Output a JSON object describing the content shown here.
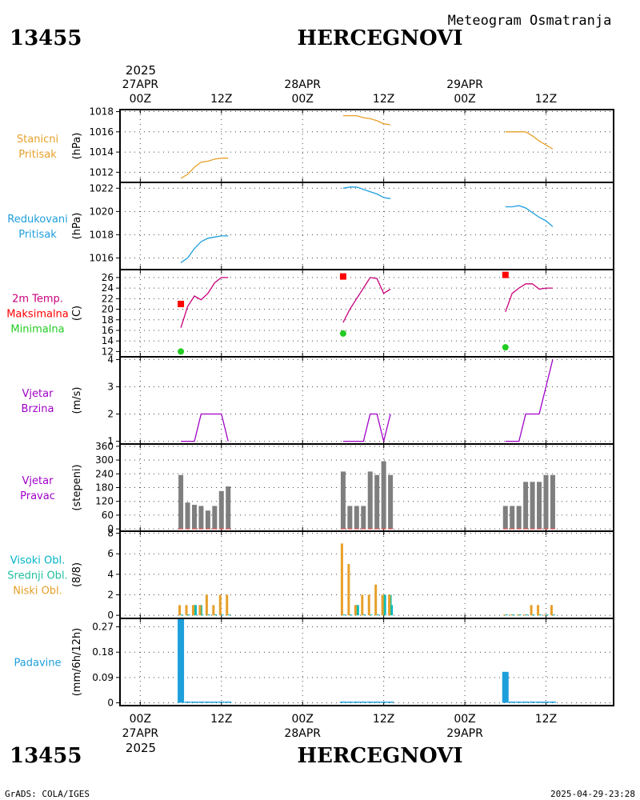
{
  "header": {
    "station_id": "13455",
    "station_name": "HERCEGNOVI",
    "subtitle": "Meteogram Osmatranja"
  },
  "footer": {
    "station_id": "13455",
    "station_name": "HERCEGNOVI",
    "software": "GrADS: COLA/IGES",
    "timestamp": "2025-04-29-23:28"
  },
  "time_axis": {
    "year": "2025",
    "ticks": [
      {
        "t": 0,
        "top": [
          "27APR",
          "00Z"
        ],
        "bottom": [
          "00Z",
          "27APR"
        ]
      },
      {
        "t": 12,
        "top": [
          "12Z"
        ],
        "bottom": [
          "12Z"
        ]
      },
      {
        "t": 24,
        "top": [
          "28APR",
          "00Z"
        ],
        "bottom": [
          "00Z",
          "28APR"
        ]
      },
      {
        "t": 36,
        "top": [
          "12Z"
        ],
        "bottom": [
          "12Z"
        ]
      },
      {
        "t": 48,
        "top": [
          "29APR",
          "00Z"
        ],
        "bottom": [
          "00Z",
          "29APR"
        ]
      },
      {
        "t": 60,
        "top": [
          "12Z"
        ],
        "bottom": [
          "12Z"
        ]
      }
    ],
    "range_hours": [
      -3,
      70
    ]
  },
  "colors": {
    "station_pressure": "#e6a02a",
    "reduced_pressure": "#1e9fdc",
    "temperature": "#c8007a",
    "tmax": "#ff0000",
    "tmin": "#22cc22",
    "wind": "#a000c8",
    "wind_dir_bar": "#7f7f7f",
    "wind_dir_base": "#ff4444",
    "high_cloud": "#00b4c8",
    "mid_cloud": "#20c0a0",
    "low_cloud": "#e6a02a",
    "precip": "#1e9fdc"
  },
  "chart_data": [
    {
      "type": "line",
      "panel": "station_pressure",
      "labels": [
        "Stanicni",
        "Pritisak"
      ],
      "ylabel": "(hPa)",
      "ylim": [
        1011,
        1018.2
      ],
      "yticks": [
        1012,
        1014,
        1016,
        1018
      ],
      "series": [
        {
          "x": [
            6,
            7,
            8,
            9,
            10,
            11,
            12,
            13,
            30,
            31,
            32,
            33,
            34,
            35,
            36,
            37,
            54,
            55,
            56,
            57,
            58,
            59,
            60,
            61
          ],
          "y": [
            1011.4,
            1011.8,
            1012.5,
            1013.0,
            1013.1,
            1013.3,
            1013.4,
            1013.4,
            null,
            null,
            null,
            null,
            null,
            null,
            null,
            null,
            null,
            null,
            null,
            null,
            null,
            null,
            null,
            null
          ]
        },
        {
          "x": [
            30,
            31,
            32,
            33,
            34,
            35,
            36,
            37
          ],
          "y": [
            1017.6,
            1017.6,
            1017.6,
            1017.4,
            1017.3,
            1017.1,
            1016.8,
            1016.7
          ]
        },
        {
          "x": [
            54,
            55,
            56,
            57,
            58,
            59,
            60,
            61
          ],
          "y": [
            1016.0,
            1016.0,
            1016.0,
            1016.0,
            1015.6,
            1015.1,
            1014.7,
            1014.3
          ]
        }
      ]
    },
    {
      "type": "line",
      "panel": "reduced_pressure",
      "labels": [
        "Redukovani",
        "Pritisak"
      ],
      "ylabel": "(hPa)",
      "ylim": [
        1015,
        1022.5
      ],
      "yticks": [
        1016,
        1018,
        1020,
        1022
      ],
      "series": [
        {
          "x": [
            6,
            7,
            8,
            9,
            10,
            11,
            12,
            13
          ],
          "y": [
            1015.6,
            1016.0,
            1016.8,
            1017.4,
            1017.7,
            1017.8,
            1017.9,
            1017.9
          ]
        },
        {
          "x": [
            30,
            31,
            32,
            33,
            34,
            35,
            36,
            37
          ],
          "y": [
            1022.0,
            1022.1,
            1022.1,
            1021.9,
            1021.7,
            1021.5,
            1021.2,
            1021.1
          ]
        },
        {
          "x": [
            54,
            55,
            56,
            57,
            58,
            59,
            60,
            61
          ],
          "y": [
            1020.4,
            1020.4,
            1020.5,
            1020.3,
            1019.9,
            1019.5,
            1019.2,
            1018.7
          ]
        }
      ]
    },
    {
      "type": "line",
      "panel": "temperature",
      "labels": [
        "2m Temp.",
        "Maksimalna",
        "Minimalna"
      ],
      "ylabel": "(C)",
      "ylim": [
        11,
        27.5
      ],
      "yticks": [
        12,
        14,
        16,
        18,
        20,
        22,
        24,
        26
      ],
      "series": [
        {
          "x": [
            6,
            7,
            8,
            9,
            10,
            11,
            12,
            13
          ],
          "y": [
            16.5,
            20.5,
            22.5,
            21.8,
            23.0,
            25.0,
            26.0,
            26.0
          ]
        },
        {
          "x": [
            30,
            31,
            32,
            33,
            34,
            35,
            36,
            37
          ],
          "y": [
            17.5,
            20.0,
            22.0,
            24.0,
            26.0,
            25.8,
            23.0,
            23.8
          ]
        },
        {
          "x": [
            54,
            55,
            56,
            57,
            58,
            59,
            60,
            61
          ],
          "y": [
            19.5,
            23.0,
            24.0,
            24.8,
            24.8,
            23.8,
            24.0,
            24.0
          ]
        }
      ],
      "tmax": {
        "x": [
          6,
          30,
          54
        ],
        "y": [
          21,
          26.2,
          26.5
        ]
      },
      "tmin": {
        "x": [
          6,
          30,
          54
        ],
        "y": [
          12,
          15.4,
          12.8
        ]
      }
    },
    {
      "type": "line",
      "panel": "wind_speed",
      "labels": [
        "Vjetar",
        "Brzina"
      ],
      "ylabel": "(m/s)",
      "ylim": [
        0.9,
        4.1
      ],
      "yticks": [
        1,
        2,
        3,
        4
      ],
      "series": [
        {
          "x": [
            6,
            7,
            8,
            9,
            10,
            11,
            12,
            13
          ],
          "y": [
            1,
            1,
            1,
            2,
            2,
            2,
            2,
            1
          ]
        },
        {
          "x": [
            30,
            31,
            32,
            33,
            34,
            35,
            36,
            37
          ],
          "y": [
            1,
            1,
            1,
            1,
            2,
            2,
            1,
            2
          ]
        },
        {
          "x": [
            54,
            55,
            56,
            57,
            58,
            59,
            60,
            61
          ],
          "y": [
            1,
            1,
            1,
            2,
            2,
            2,
            3,
            4
          ]
        }
      ]
    },
    {
      "type": "bar",
      "panel": "wind_direction",
      "labels": [
        "Vjetar",
        "Pravac"
      ],
      "ylabel": "(stepeni)",
      "ylim": [
        -10,
        370
      ],
      "yticks": [
        0,
        60,
        120,
        180,
        240,
        300,
        360
      ],
      "x": [
        6,
        7,
        8,
        9,
        10,
        11,
        12,
        13,
        30,
        31,
        32,
        33,
        34,
        35,
        36,
        37,
        54,
        55,
        56,
        57,
        58,
        59,
        60,
        61
      ],
      "values": [
        235,
        115,
        105,
        100,
        80,
        100,
        165,
        185,
        250,
        100,
        100,
        100,
        250,
        235,
        295,
        235,
        100,
        100,
        100,
        205,
        205,
        205,
        235,
        235
      ]
    },
    {
      "type": "bar",
      "panel": "clouds",
      "labels": [
        "Visoki Obl.",
        "Srednji Obl.",
        "Niski Obl."
      ],
      "ylabel": "(8/8)",
      "ylim": [
        -0.3,
        8.2
      ],
      "yticks": [
        0,
        2,
        4,
        6,
        8
      ],
      "x": [
        6,
        7,
        8,
        9,
        10,
        11,
        12,
        13,
        30,
        31,
        32,
        33,
        34,
        35,
        36,
        37,
        54,
        55,
        56,
        57,
        58,
        59,
        60,
        61
      ],
      "series": [
        {
          "name": "Visoki Obl.",
          "values": [
            0,
            0,
            1,
            0,
            0,
            0,
            0,
            0,
            0,
            0,
            1,
            0,
            0,
            0,
            2,
            1,
            0,
            0,
            0,
            0,
            0,
            0,
            0,
            0
          ]
        },
        {
          "name": "Srednji Obl.",
          "values": [
            0,
            0,
            1,
            1,
            0,
            0,
            0,
            0,
            0,
            0,
            1,
            0,
            0,
            0,
            2,
            2,
            0,
            0,
            0,
            0,
            0,
            0,
            0,
            0
          ]
        },
        {
          "name": "Niski Obl.",
          "values": [
            1,
            1,
            1,
            1,
            2,
            1,
            2,
            2,
            7,
            5,
            1,
            2,
            2,
            3,
            2,
            2,
            0,
            0,
            0,
            0,
            1,
            1,
            0,
            1
          ]
        }
      ]
    },
    {
      "type": "bar",
      "panel": "precipitation",
      "labels": [
        "Padavine"
      ],
      "ylabel": "(mm/6h/12h)",
      "ylim": [
        -0.01,
        0.3
      ],
      "yticks": [
        0,
        0.09,
        0.18,
        0.27
      ],
      "ytick_labels": [
        "0",
        "0.09",
        "0.18",
        "0.27"
      ],
      "x": [
        6,
        7,
        8,
        9,
        10,
        11,
        12,
        13,
        30,
        31,
        32,
        33,
        34,
        35,
        36,
        37,
        54,
        55,
        56,
        57,
        58,
        59,
        60,
        61
      ],
      "values": [
        0.3,
        0.002,
        0.002,
        0.002,
        0.002,
        0.002,
        0.002,
        0.002,
        0.002,
        0.002,
        0.002,
        0.002,
        0.002,
        0.002,
        0.002,
        0.002,
        0.11,
        0.002,
        0.002,
        0.002,
        0.002,
        0.002,
        0.002,
        0.002
      ]
    }
  ]
}
